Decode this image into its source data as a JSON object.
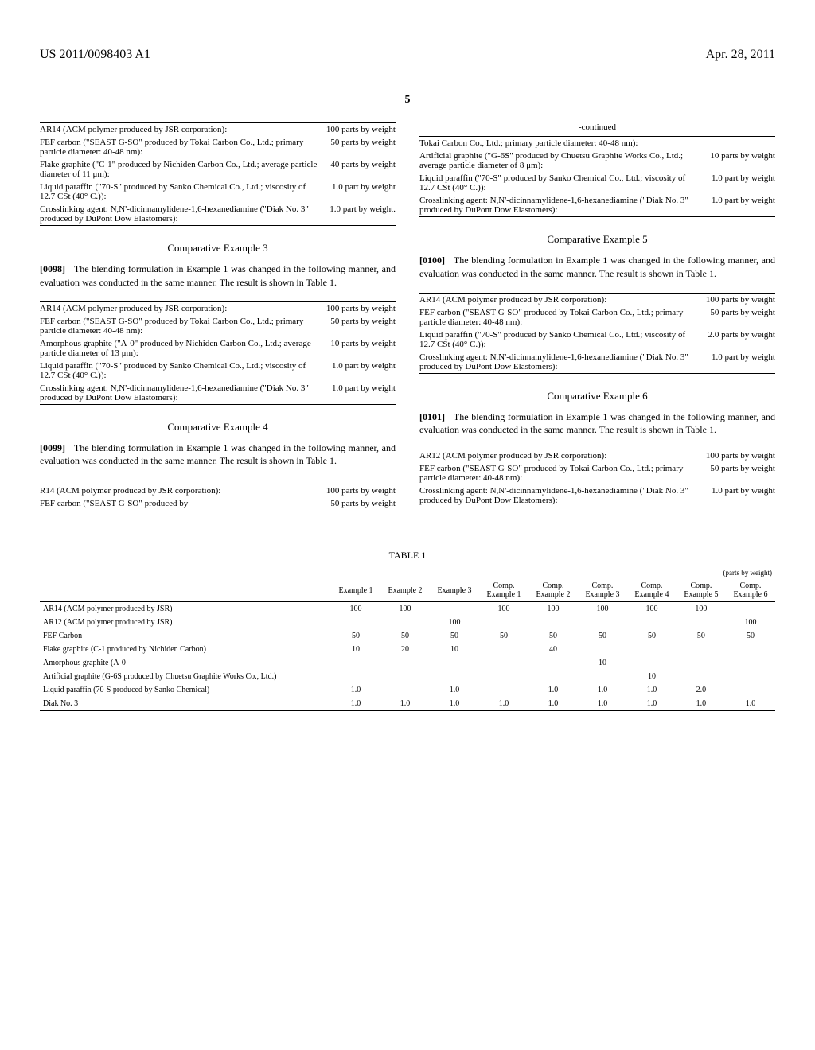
{
  "header": {
    "left": "US 2011/0098403 A1",
    "right": "Apr. 28, 2011"
  },
  "page_number": "5",
  "leftColumn": {
    "formula1": {
      "rows": [
        {
          "desc": "AR14 (ACM polymer produced by JSR corporation):",
          "amt": "100 parts by weight"
        },
        {
          "desc": "FEF carbon (\"SEAST G-SO\" produced by Tokai Carbon Co., Ltd.; primary particle diameter: 40-48 nm):",
          "amt": "50 parts by weight"
        },
        {
          "desc": "Flake graphite (\"C-1\" produced by Nichiden Carbon Co., Ltd.; average particle diameter of 11 μm):",
          "amt": "40 parts by weight"
        },
        {
          "desc": "Liquid paraffin (\"70-S\" produced by Sanko Chemical Co., Ltd.; viscosity of 12.7 CSt (40° C.)):",
          "amt": "1.0 part by weight"
        },
        {
          "desc": "Crosslinking agent: N,N'-dicinnamylidene-1,6-hexanediamine (\"Diak No. 3\" produced by DuPont Dow Elastomers):",
          "amt": "1.0 part by weight."
        }
      ]
    },
    "comp3": {
      "title": "Comparative Example 3",
      "para_num": "[0098]",
      "text": "The blending formulation in Example 1 was changed in the following manner, and evaluation was conducted in the same manner. The result is shown in Table 1.",
      "rows": [
        {
          "desc": "AR14 (ACM polymer produced by JSR corporation):",
          "amt": "100 parts by weight"
        },
        {
          "desc": "FEF carbon (\"SEAST G-SO\" produced by Tokai Carbon Co., Ltd.; primary particle diameter: 40-48 nm):",
          "amt": "50 parts by weight"
        },
        {
          "desc": "Amorphous graphite (\"A-0\" produced by Nichiden Carbon Co., Ltd.; average particle diameter of 13 μm):",
          "amt": "10 parts by weight"
        },
        {
          "desc": "Liquid paraffin (\"70-S\" produced by Sanko Chemical Co., Ltd.; viscosity of 12.7 CSt (40° C.)):",
          "amt": "1.0 part by weight"
        },
        {
          "desc": "Crosslinking agent: N,N'-dicinnamylidene-1,6-hexanediamine (\"Diak No. 3\" produced by DuPont Dow Elastomers):",
          "amt": "1.0 part by weight"
        }
      ]
    },
    "comp4": {
      "title": "Comparative Example 4",
      "para_num": "[0099]",
      "text": "The blending formulation in Example 1 was changed in the following manner, and evaluation was conducted in the same manner. The result is shown in Table 1.",
      "rows": [
        {
          "desc": "R14 (ACM polymer produced by JSR corporation):",
          "amt": "100 parts by weight"
        },
        {
          "desc": "FEF carbon (\"SEAST G-SO\" produced by",
          "amt": "50 parts by weight"
        }
      ]
    }
  },
  "rightColumn": {
    "continued_label": "-continued",
    "continued_rows": [
      {
        "desc": "Tokai Carbon Co., Ltd.; primary particle diameter: 40-48 nm):",
        "amt": ""
      },
      {
        "desc": "Artificial graphite (\"G-6S\" produced by Chuetsu Graphite Works Co., Ltd.; average particle diameter of 8 μm):",
        "amt": "10 parts by weight"
      },
      {
        "desc": "Liquid paraffin (\"70-S\" produced by Sanko Chemical Co., Ltd.; viscosity of 12.7 CSt (40° C.)):",
        "amt": "1.0 part by weight"
      },
      {
        "desc": "Crosslinking agent: N,N'-dicinnamylidene-1,6-hexanediamine (\"Diak No. 3\" produced by DuPont Dow Elastomers):",
        "amt": "1.0 part by weight"
      }
    ],
    "comp5": {
      "title": "Comparative Example 5",
      "para_num": "[0100]",
      "text": "The blending formulation in Example 1 was changed in the following manner, and evaluation was conducted in the same manner. The result is shown in Table 1.",
      "rows": [
        {
          "desc": "AR14 (ACM polymer produced by JSR corporation):",
          "amt": "100 parts by weight"
        },
        {
          "desc": "FEF carbon (\"SEAST G-SO\" produced by Tokai Carbon Co., Ltd.; primary particle diameter: 40-48 nm):",
          "amt": "50 parts by weight"
        },
        {
          "desc": "Liquid paraffin (\"70-S\" produced by Sanko Chemical Co., Ltd.; viscosity of 12.7 CSt (40° C.)):",
          "amt": "2.0 parts by weight"
        },
        {
          "desc": "Crosslinking agent: N,N'-dicinnamylidene-1,6-hexanediamine (\"Diak No. 3\" produced by DuPont Dow Elastomers):",
          "amt": "1.0 part by weight"
        }
      ]
    },
    "comp6": {
      "title": "Comparative Example 6",
      "para_num": "[0101]",
      "text": "The blending formulation in Example 1 was changed in the following manner, and evaluation was conducted in the same manner. The result is shown in Table 1.",
      "rows": [
        {
          "desc": "AR12 (ACM polymer produced by JSR corporation):",
          "amt": "100 parts by weight"
        },
        {
          "desc": "FEF carbon (\"SEAST G-SO\" produced by Tokai Carbon Co., Ltd.; primary particle diameter: 40-48 nm):",
          "amt": "50 parts by weight"
        },
        {
          "desc": "Crosslinking agent: N,N'-dicinnamylidene-1,6-hexanediamine (\"Diak No. 3\" produced by DuPont Dow Elastomers):",
          "amt": "1.0 part by weight"
        }
      ]
    }
  },
  "table1": {
    "title": "TABLE 1",
    "unit_text": "(parts by weight)",
    "headers": [
      "",
      "Example 1",
      "Example 2",
      "Example 3",
      "Comp. Example 1",
      "Comp. Example 2",
      "Comp. Example 3",
      "Comp. Example 4",
      "Comp. Example 5",
      "Comp. Example 6"
    ],
    "rows": [
      {
        "label": "AR14 (ACM polymer produced by JSR)",
        "vals": [
          "100",
          "100",
          "",
          "100",
          "100",
          "100",
          "100",
          "100",
          ""
        ]
      },
      {
        "label": "AR12 (ACM polymer produced by JSR)",
        "vals": [
          "",
          "",
          "100",
          "",
          "",
          "",
          "",
          "",
          "100"
        ]
      },
      {
        "label": "FEF Carbon",
        "vals": [
          "50",
          "50",
          "50",
          "50",
          "50",
          "50",
          "50",
          "50",
          "50"
        ]
      },
      {
        "label": "Flake graphite (C-1 produced by Nichiden Carbon)",
        "vals": [
          "10",
          "20",
          "10",
          "",
          "40",
          "",
          "",
          "",
          ""
        ]
      },
      {
        "label": "Amorphous graphite (A-0",
        "vals": [
          "",
          "",
          "",
          "",
          "",
          "10",
          "",
          "",
          ""
        ]
      },
      {
        "label": "Artificial graphite (G-6S produced by Chuetsu Graphite Works Co., Ltd.)",
        "vals": [
          "",
          "",
          "",
          "",
          "",
          "",
          "10",
          "",
          ""
        ]
      },
      {
        "label": "Liquid paraffin (70-S produced by Sanko Chemical)",
        "vals": [
          "1.0",
          "",
          "1.0",
          "",
          "1.0",
          "1.0",
          "1.0",
          "2.0",
          ""
        ]
      },
      {
        "label": "Diak No. 3",
        "vals": [
          "1.0",
          "1.0",
          "1.0",
          "1.0",
          "1.0",
          "1.0",
          "1.0",
          "1.0",
          "1.0"
        ]
      }
    ]
  }
}
